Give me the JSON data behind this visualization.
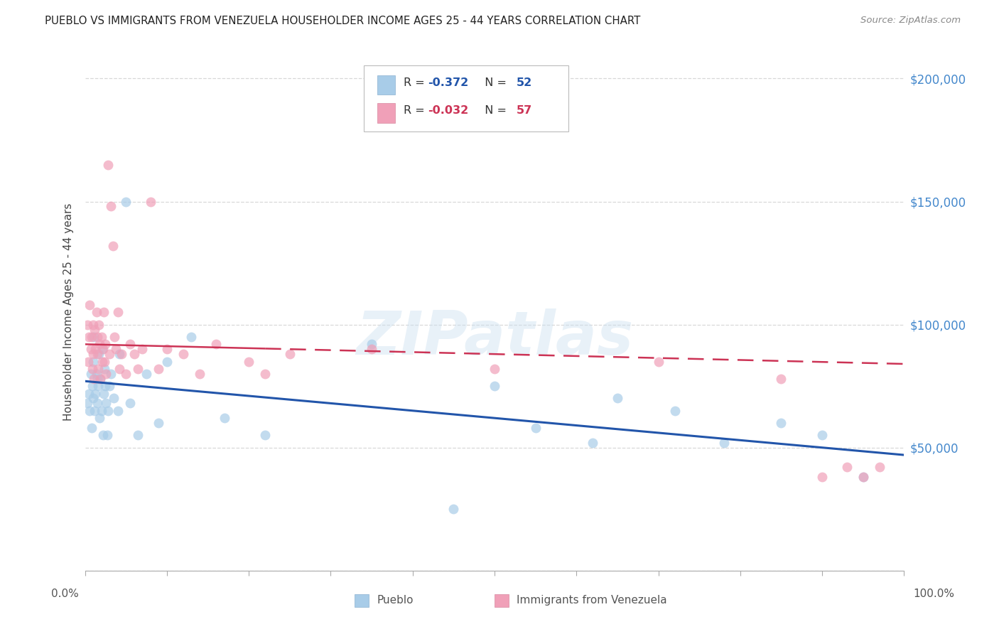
{
  "title": "PUEBLO VS IMMIGRANTS FROM VENEZUELA HOUSEHOLDER INCOME AGES 25 - 44 YEARS CORRELATION CHART",
  "source": "Source: ZipAtlas.com",
  "ylabel": "Householder Income Ages 25 - 44 years",
  "ylim": [
    0,
    210000
  ],
  "xlim": [
    0.0,
    1.0
  ],
  "blue_color": "#a8cce8",
  "pink_color": "#f0a0b8",
  "blue_line_color": "#2255aa",
  "pink_line_color": "#cc3355",
  "background_color": "#ffffff",
  "grid_color": "#d8d8d8",
  "legend_blue_r": "-0.372",
  "legend_blue_n": "52",
  "legend_pink_r": "-0.032",
  "legend_pink_n": "57",
  "watermark": "ZIPatlas",
  "pueblo_x": [
    0.003,
    0.005,
    0.006,
    0.007,
    0.008,
    0.009,
    0.01,
    0.01,
    0.011,
    0.012,
    0.013,
    0.014,
    0.015,
    0.015,
    0.016,
    0.017,
    0.018,
    0.019,
    0.02,
    0.021,
    0.022,
    0.023,
    0.024,
    0.025,
    0.026,
    0.027,
    0.028,
    0.03,
    0.032,
    0.035,
    0.04,
    0.042,
    0.05,
    0.055,
    0.065,
    0.075,
    0.09,
    0.1,
    0.13,
    0.17,
    0.22,
    0.35,
    0.45,
    0.5,
    0.55,
    0.62,
    0.65,
    0.72,
    0.78,
    0.85,
    0.9,
    0.95
  ],
  "pueblo_y": [
    68000,
    72000,
    65000,
    80000,
    58000,
    75000,
    85000,
    70000,
    95000,
    65000,
    72000,
    80000,
    78000,
    68000,
    75000,
    88000,
    62000,
    78000,
    65000,
    90000,
    55000,
    72000,
    82000,
    75000,
    68000,
    55000,
    65000,
    75000,
    80000,
    70000,
    65000,
    88000,
    150000,
    68000,
    55000,
    80000,
    60000,
    85000,
    95000,
    62000,
    55000,
    92000,
    25000,
    75000,
    58000,
    52000,
    70000,
    65000,
    52000,
    60000,
    55000,
    38000
  ],
  "venezuela_x": [
    0.003,
    0.004,
    0.005,
    0.006,
    0.007,
    0.008,
    0.009,
    0.01,
    0.01,
    0.011,
    0.012,
    0.013,
    0.014,
    0.015,
    0.015,
    0.016,
    0.017,
    0.018,
    0.019,
    0.02,
    0.021,
    0.022,
    0.023,
    0.024,
    0.025,
    0.026,
    0.028,
    0.03,
    0.032,
    0.034,
    0.036,
    0.038,
    0.04,
    0.042,
    0.045,
    0.05,
    0.055,
    0.06,
    0.065,
    0.07,
    0.08,
    0.09,
    0.1,
    0.12,
    0.14,
    0.16,
    0.2,
    0.22,
    0.25,
    0.35,
    0.5,
    0.7,
    0.85,
    0.9,
    0.93,
    0.95,
    0.97
  ],
  "venezuela_y": [
    100000,
    85000,
    95000,
    108000,
    90000,
    95000,
    82000,
    100000,
    88000,
    78000,
    98000,
    90000,
    105000,
    88000,
    95000,
    82000,
    100000,
    92000,
    78000,
    95000,
    85000,
    90000,
    105000,
    85000,
    92000,
    80000,
    165000,
    88000,
    148000,
    132000,
    95000,
    90000,
    105000,
    82000,
    88000,
    80000,
    92000,
    88000,
    82000,
    90000,
    150000,
    82000,
    90000,
    88000,
    80000,
    92000,
    85000,
    80000,
    88000,
    90000,
    82000,
    85000,
    78000,
    38000,
    42000,
    38000,
    42000
  ],
  "blue_trend_x0": 0.0,
  "blue_trend_y0": 77000,
  "blue_trend_x1": 1.0,
  "blue_trend_y1": 47000,
  "pink_trend_x0": 0.0,
  "pink_trend_y0": 92000,
  "pink_trend_x1": 1.0,
  "pink_trend_y1": 84000
}
